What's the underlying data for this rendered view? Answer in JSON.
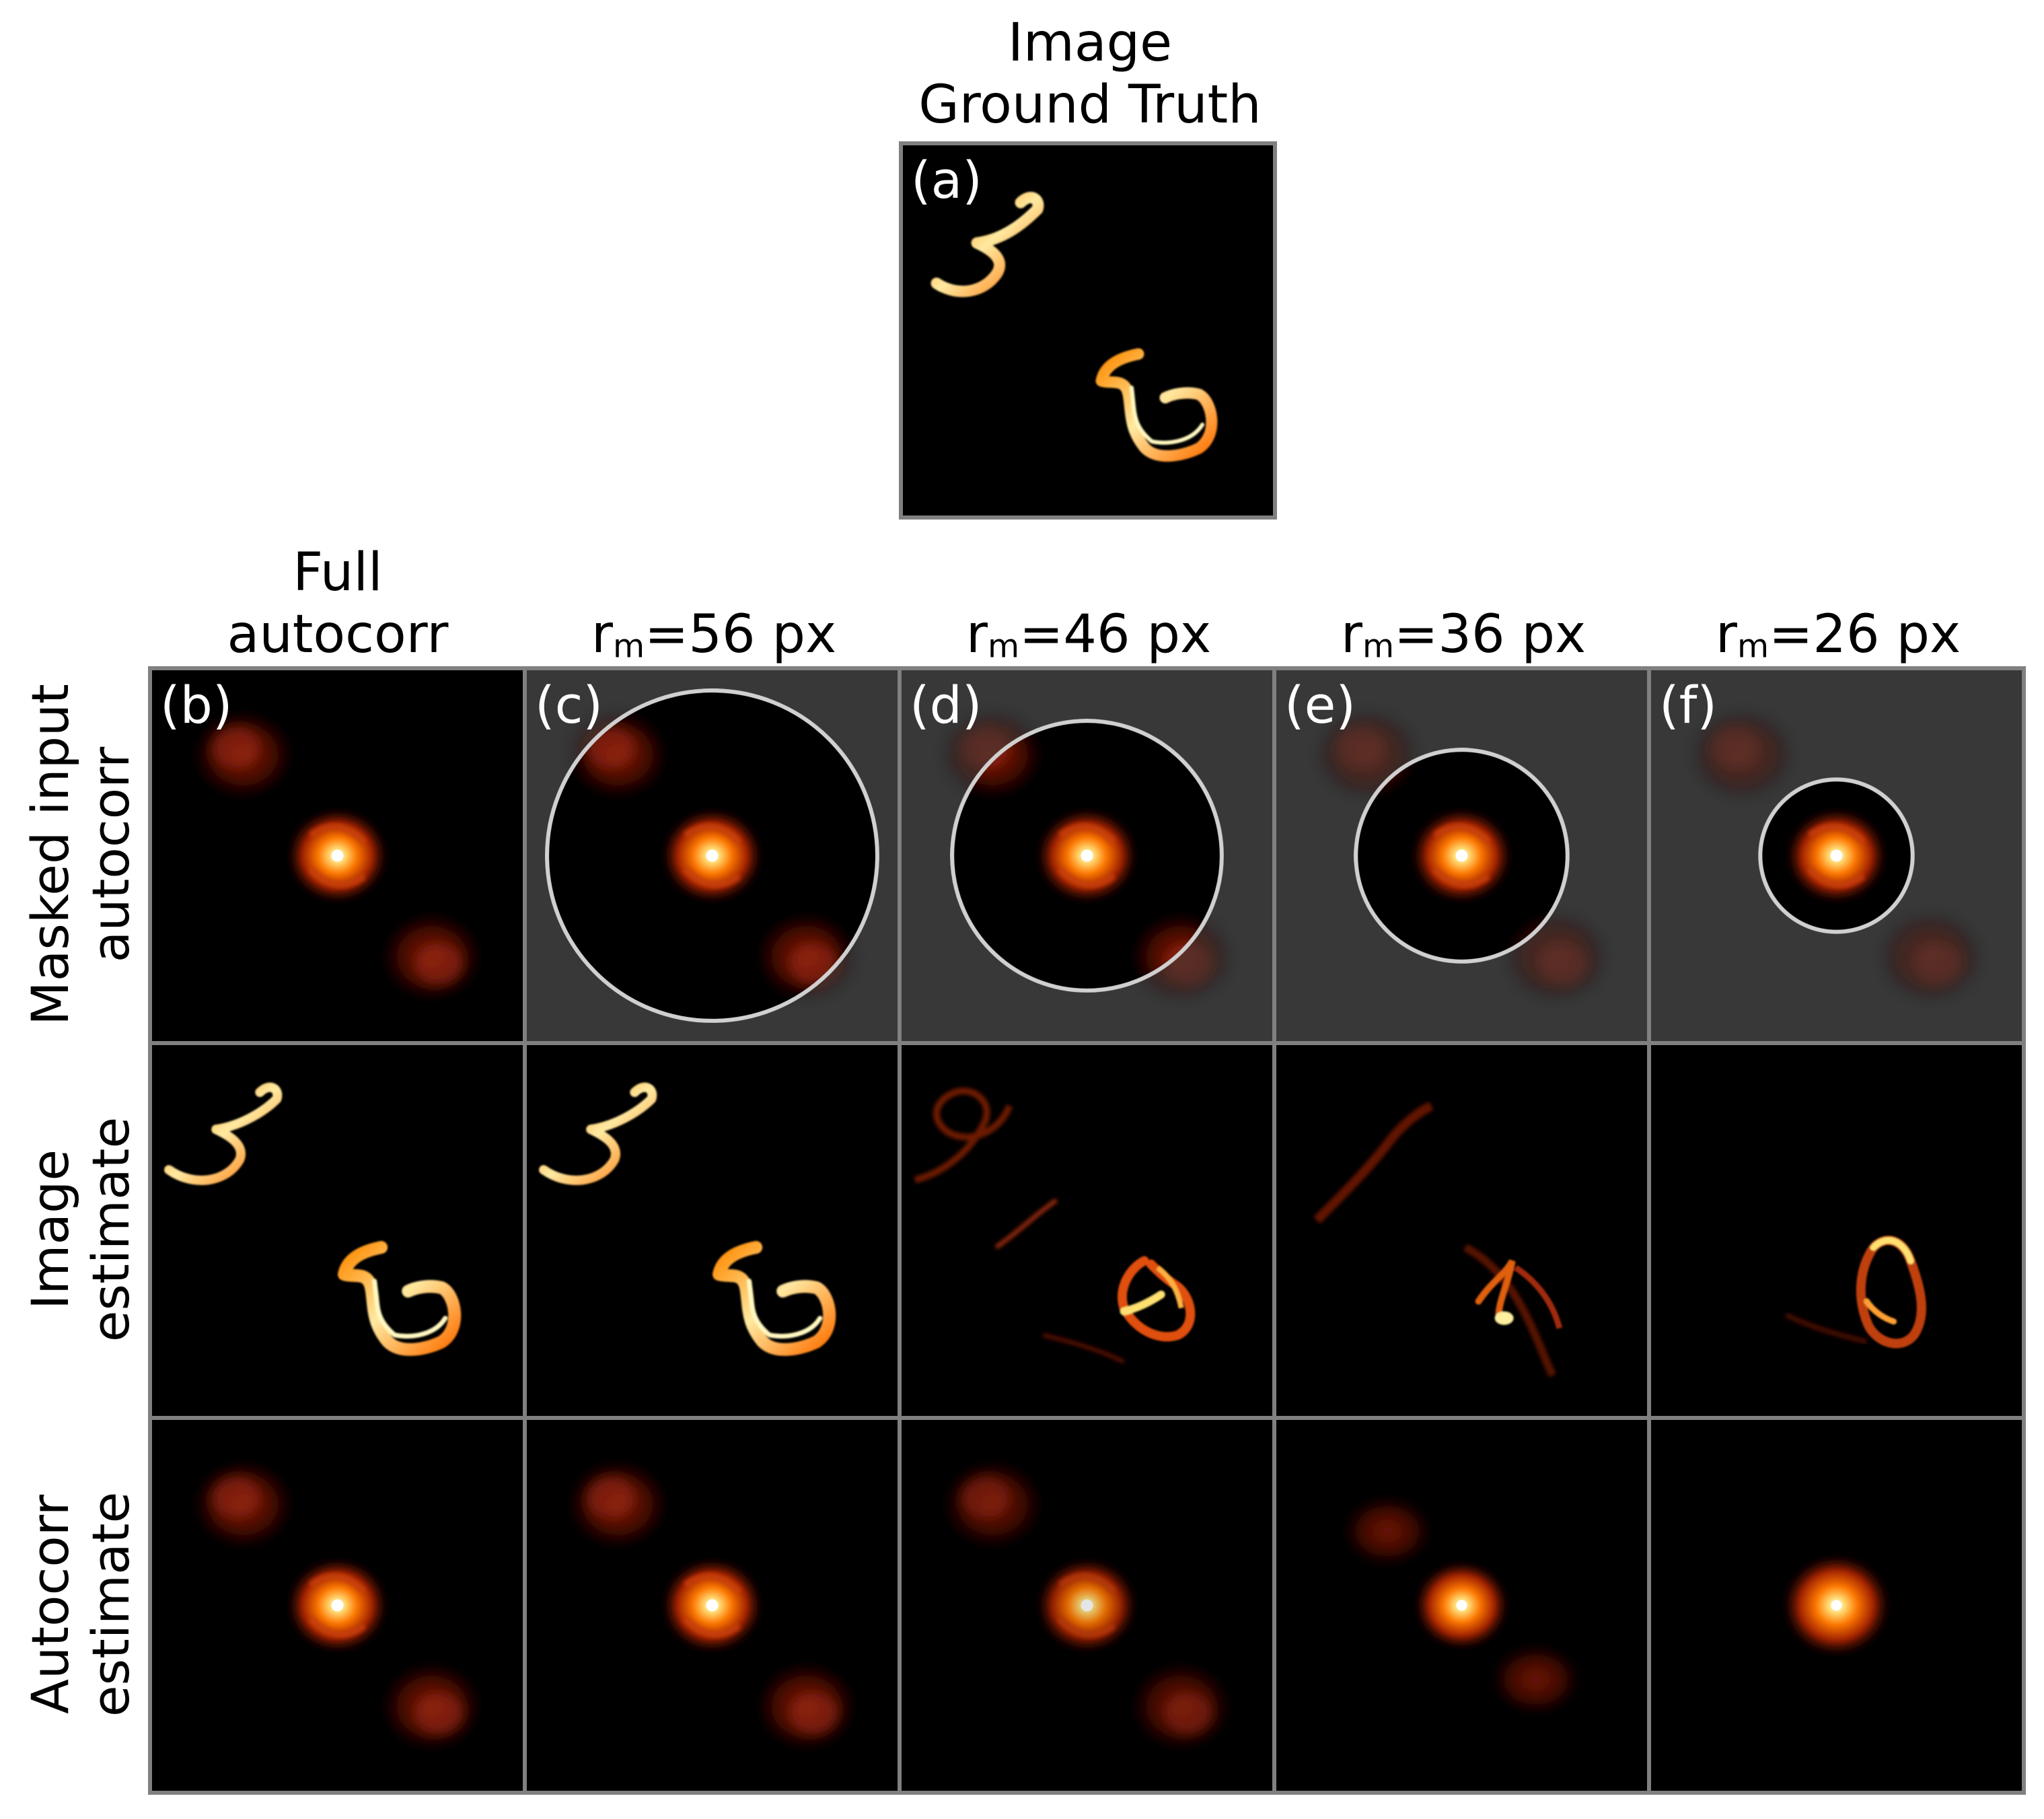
{
  "top": {
    "title_line1": "Image",
    "title_line2": "Ground Truth",
    "panel_label": "(a)"
  },
  "columns": [
    {
      "title_line1": "Full",
      "title_line2": "autocorr",
      "panel_label": "(b)"
    },
    {
      "title_var": "r",
      "title_sub": "m",
      "title_rest": "=56 px",
      "panel_label": "(c)"
    },
    {
      "title_var": "r",
      "title_sub": "m",
      "title_rest": "=46 px",
      "panel_label": "(d)"
    },
    {
      "title_var": "r",
      "title_sub": "m",
      "title_rest": "=36 px",
      "panel_label": "(e)"
    },
    {
      "title_var": "r",
      "title_sub": "m",
      "title_rest": "=26 px",
      "panel_label": "(f)"
    }
  ],
  "rows": [
    {
      "label_line1": "Masked input",
      "label_line2": "autocorr"
    },
    {
      "label_line1": "Image",
      "label_line2": "estimate"
    },
    {
      "label_line1": "Autocorr",
      "label_line2": "estimate"
    }
  ],
  "colors": {
    "panel_background": "#000000",
    "panel_border": "#808080",
    "mask_outside": "#383838",
    "mask_circle": "#d0d0d0",
    "hot_low": "#7a1000",
    "hot_mid": "#ff7a00",
    "hot_high": "#fff4b0"
  }
}
